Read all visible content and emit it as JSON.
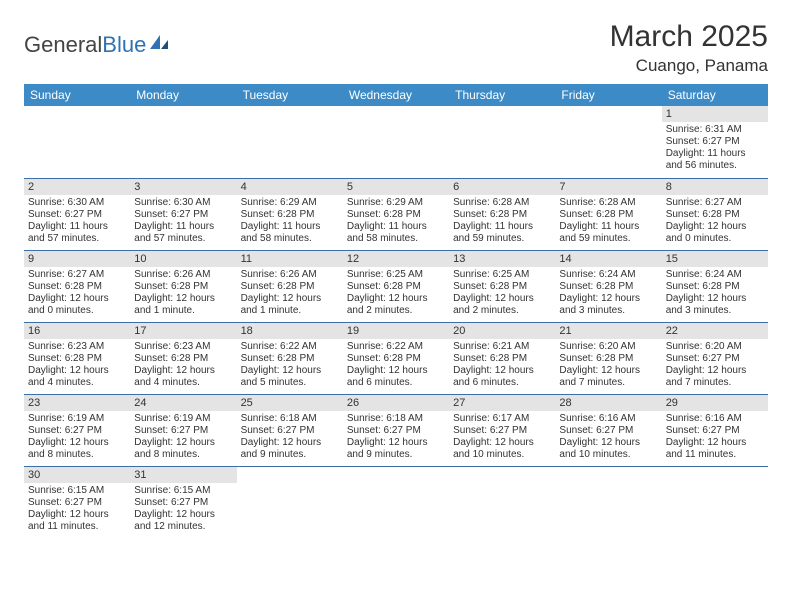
{
  "logo": {
    "text1": "General",
    "text2": "Blue"
  },
  "title": "March 2025",
  "location": "Cuango, Panama",
  "colors": {
    "header_bg": "#3c8ac6",
    "header_text": "#ffffff",
    "daynum_bg": "#e4e4e4",
    "row_border": "#3c6fa5",
    "logo_accent": "#2f73b5"
  },
  "weekdays": [
    "Sunday",
    "Monday",
    "Tuesday",
    "Wednesday",
    "Thursday",
    "Friday",
    "Saturday"
  ],
  "weeks": [
    [
      {
        "n": "",
        "sr": "",
        "ss": "",
        "dl": ""
      },
      {
        "n": "",
        "sr": "",
        "ss": "",
        "dl": ""
      },
      {
        "n": "",
        "sr": "",
        "ss": "",
        "dl": ""
      },
      {
        "n": "",
        "sr": "",
        "ss": "",
        "dl": ""
      },
      {
        "n": "",
        "sr": "",
        "ss": "",
        "dl": ""
      },
      {
        "n": "",
        "sr": "",
        "ss": "",
        "dl": ""
      },
      {
        "n": "1",
        "sr": "Sunrise: 6:31 AM",
        "ss": "Sunset: 6:27 PM",
        "dl": "Daylight: 11 hours and 56 minutes."
      }
    ],
    [
      {
        "n": "2",
        "sr": "Sunrise: 6:30 AM",
        "ss": "Sunset: 6:27 PM",
        "dl": "Daylight: 11 hours and 57 minutes."
      },
      {
        "n": "3",
        "sr": "Sunrise: 6:30 AM",
        "ss": "Sunset: 6:27 PM",
        "dl": "Daylight: 11 hours and 57 minutes."
      },
      {
        "n": "4",
        "sr": "Sunrise: 6:29 AM",
        "ss": "Sunset: 6:28 PM",
        "dl": "Daylight: 11 hours and 58 minutes."
      },
      {
        "n": "5",
        "sr": "Sunrise: 6:29 AM",
        "ss": "Sunset: 6:28 PM",
        "dl": "Daylight: 11 hours and 58 minutes."
      },
      {
        "n": "6",
        "sr": "Sunrise: 6:28 AM",
        "ss": "Sunset: 6:28 PM",
        "dl": "Daylight: 11 hours and 59 minutes."
      },
      {
        "n": "7",
        "sr": "Sunrise: 6:28 AM",
        "ss": "Sunset: 6:28 PM",
        "dl": "Daylight: 11 hours and 59 minutes."
      },
      {
        "n": "8",
        "sr": "Sunrise: 6:27 AM",
        "ss": "Sunset: 6:28 PM",
        "dl": "Daylight: 12 hours and 0 minutes."
      }
    ],
    [
      {
        "n": "9",
        "sr": "Sunrise: 6:27 AM",
        "ss": "Sunset: 6:28 PM",
        "dl": "Daylight: 12 hours and 0 minutes."
      },
      {
        "n": "10",
        "sr": "Sunrise: 6:26 AM",
        "ss": "Sunset: 6:28 PM",
        "dl": "Daylight: 12 hours and 1 minute."
      },
      {
        "n": "11",
        "sr": "Sunrise: 6:26 AM",
        "ss": "Sunset: 6:28 PM",
        "dl": "Daylight: 12 hours and 1 minute."
      },
      {
        "n": "12",
        "sr": "Sunrise: 6:25 AM",
        "ss": "Sunset: 6:28 PM",
        "dl": "Daylight: 12 hours and 2 minutes."
      },
      {
        "n": "13",
        "sr": "Sunrise: 6:25 AM",
        "ss": "Sunset: 6:28 PM",
        "dl": "Daylight: 12 hours and 2 minutes."
      },
      {
        "n": "14",
        "sr": "Sunrise: 6:24 AM",
        "ss": "Sunset: 6:28 PM",
        "dl": "Daylight: 12 hours and 3 minutes."
      },
      {
        "n": "15",
        "sr": "Sunrise: 6:24 AM",
        "ss": "Sunset: 6:28 PM",
        "dl": "Daylight: 12 hours and 3 minutes."
      }
    ],
    [
      {
        "n": "16",
        "sr": "Sunrise: 6:23 AM",
        "ss": "Sunset: 6:28 PM",
        "dl": "Daylight: 12 hours and 4 minutes."
      },
      {
        "n": "17",
        "sr": "Sunrise: 6:23 AM",
        "ss": "Sunset: 6:28 PM",
        "dl": "Daylight: 12 hours and 4 minutes."
      },
      {
        "n": "18",
        "sr": "Sunrise: 6:22 AM",
        "ss": "Sunset: 6:28 PM",
        "dl": "Daylight: 12 hours and 5 minutes."
      },
      {
        "n": "19",
        "sr": "Sunrise: 6:22 AM",
        "ss": "Sunset: 6:28 PM",
        "dl": "Daylight: 12 hours and 6 minutes."
      },
      {
        "n": "20",
        "sr": "Sunrise: 6:21 AM",
        "ss": "Sunset: 6:28 PM",
        "dl": "Daylight: 12 hours and 6 minutes."
      },
      {
        "n": "21",
        "sr": "Sunrise: 6:20 AM",
        "ss": "Sunset: 6:28 PM",
        "dl": "Daylight: 12 hours and 7 minutes."
      },
      {
        "n": "22",
        "sr": "Sunrise: 6:20 AM",
        "ss": "Sunset: 6:27 PM",
        "dl": "Daylight: 12 hours and 7 minutes."
      }
    ],
    [
      {
        "n": "23",
        "sr": "Sunrise: 6:19 AM",
        "ss": "Sunset: 6:27 PM",
        "dl": "Daylight: 12 hours and 8 minutes."
      },
      {
        "n": "24",
        "sr": "Sunrise: 6:19 AM",
        "ss": "Sunset: 6:27 PM",
        "dl": "Daylight: 12 hours and 8 minutes."
      },
      {
        "n": "25",
        "sr": "Sunrise: 6:18 AM",
        "ss": "Sunset: 6:27 PM",
        "dl": "Daylight: 12 hours and 9 minutes."
      },
      {
        "n": "26",
        "sr": "Sunrise: 6:18 AM",
        "ss": "Sunset: 6:27 PM",
        "dl": "Daylight: 12 hours and 9 minutes."
      },
      {
        "n": "27",
        "sr": "Sunrise: 6:17 AM",
        "ss": "Sunset: 6:27 PM",
        "dl": "Daylight: 12 hours and 10 minutes."
      },
      {
        "n": "28",
        "sr": "Sunrise: 6:16 AM",
        "ss": "Sunset: 6:27 PM",
        "dl": "Daylight: 12 hours and 10 minutes."
      },
      {
        "n": "29",
        "sr": "Sunrise: 6:16 AM",
        "ss": "Sunset: 6:27 PM",
        "dl": "Daylight: 12 hours and 11 minutes."
      }
    ],
    [
      {
        "n": "30",
        "sr": "Sunrise: 6:15 AM",
        "ss": "Sunset: 6:27 PM",
        "dl": "Daylight: 12 hours and 11 minutes."
      },
      {
        "n": "31",
        "sr": "Sunrise: 6:15 AM",
        "ss": "Sunset: 6:27 PM",
        "dl": "Daylight: 12 hours and 12 minutes."
      },
      {
        "n": "",
        "sr": "",
        "ss": "",
        "dl": ""
      },
      {
        "n": "",
        "sr": "",
        "ss": "",
        "dl": ""
      },
      {
        "n": "",
        "sr": "",
        "ss": "",
        "dl": ""
      },
      {
        "n": "",
        "sr": "",
        "ss": "",
        "dl": ""
      },
      {
        "n": "",
        "sr": "",
        "ss": "",
        "dl": ""
      }
    ]
  ]
}
